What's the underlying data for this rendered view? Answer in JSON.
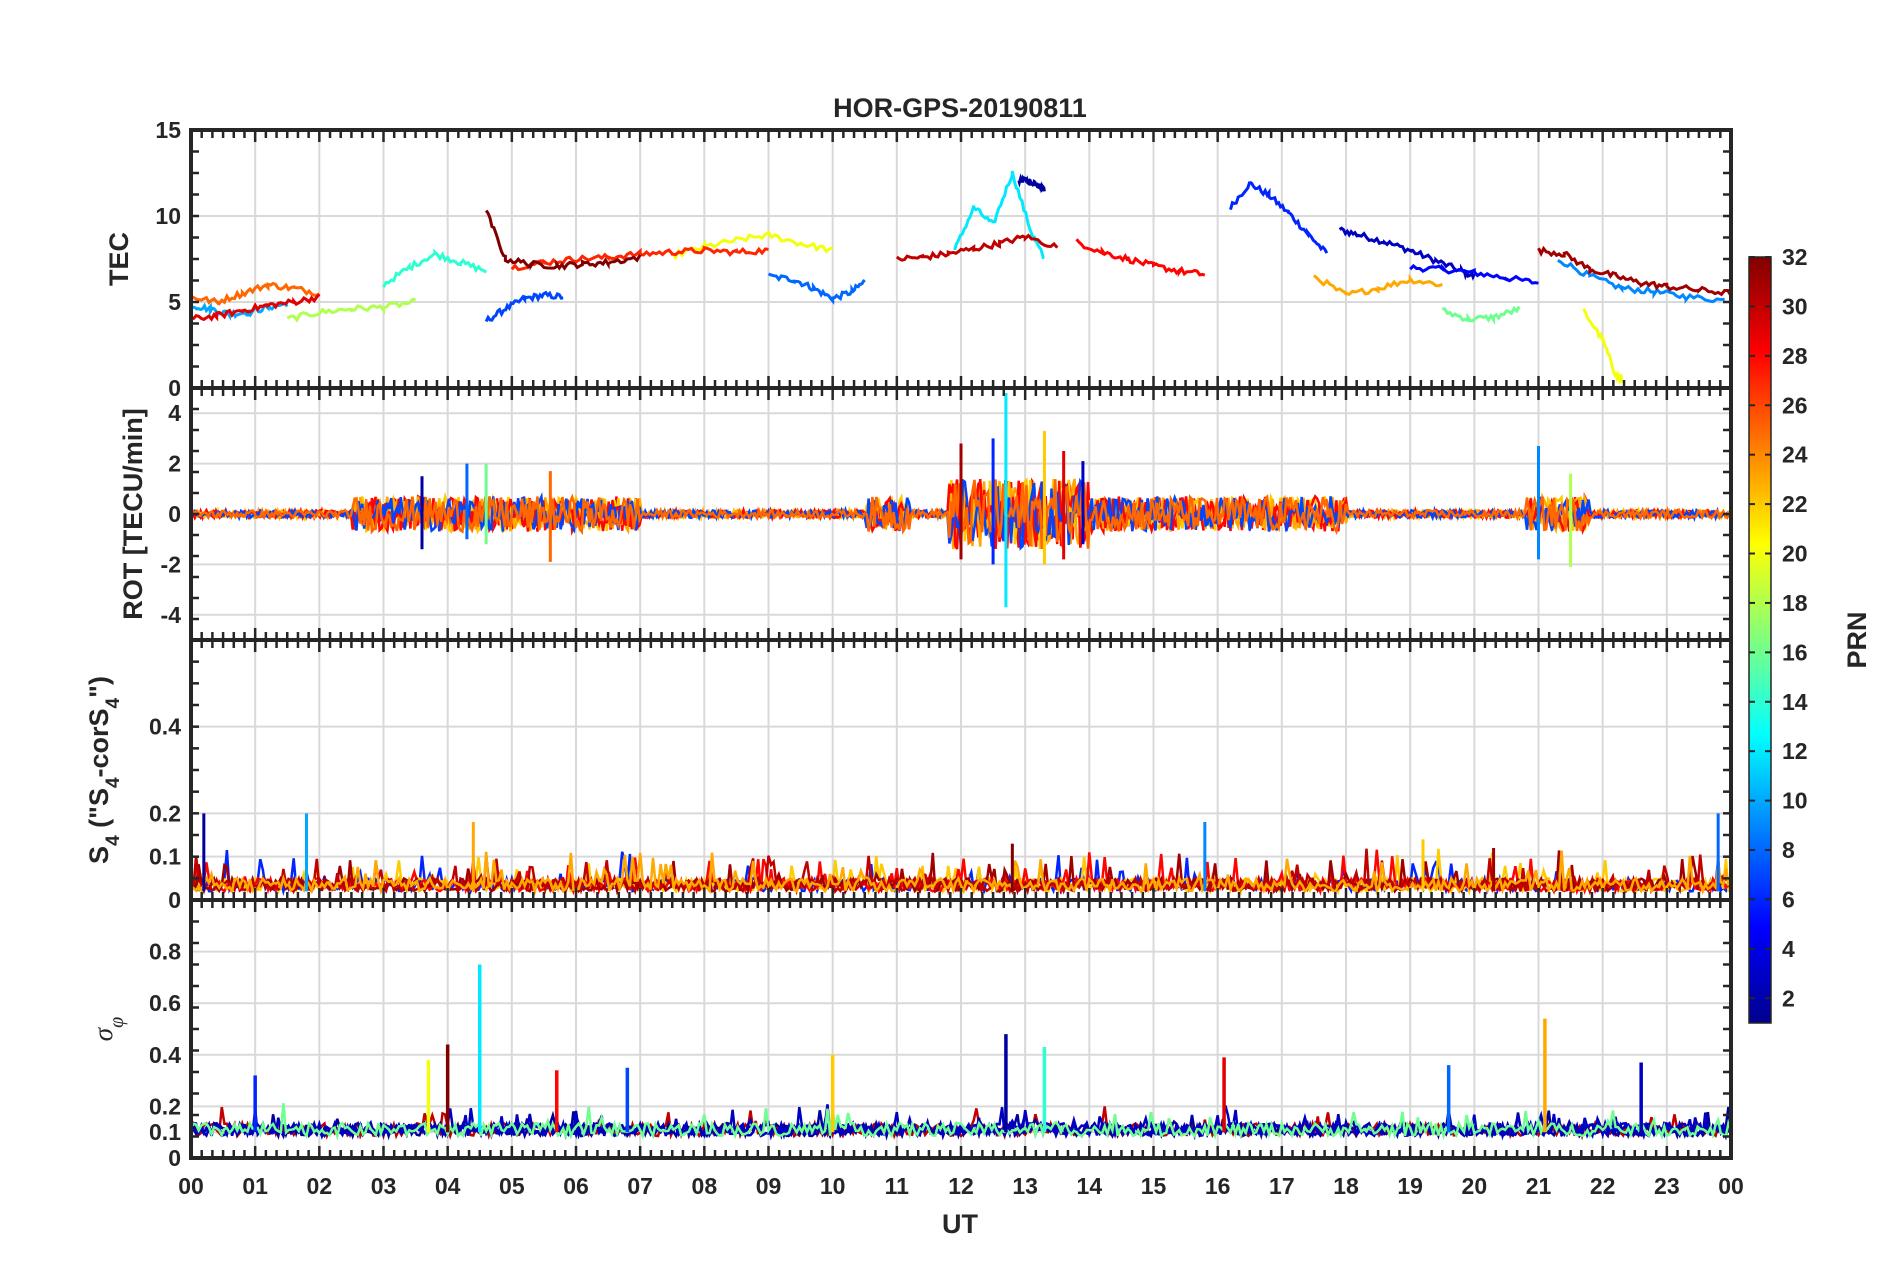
{
  "chart_data": {
    "type": "line",
    "title": "HOR-GPS-20190811",
    "xlabel": "UT",
    "x_ticks": [
      "00",
      "01",
      "02",
      "03",
      "04",
      "05",
      "06",
      "07",
      "08",
      "09",
      "10",
      "11",
      "12",
      "13",
      "14",
      "15",
      "16",
      "17",
      "18",
      "19",
      "20",
      "21",
      "22",
      "23",
      "00"
    ],
    "xlim": [
      0,
      24
    ],
    "grid": true,
    "colorbar": {
      "label": "PRN",
      "range": [
        1,
        32
      ],
      "ticks": [
        "2",
        "4",
        "6",
        "8",
        "10",
        "12",
        "14",
        "16",
        "18",
        "20",
        "22",
        "24",
        "26",
        "28",
        "30",
        "32"
      ]
    },
    "panels": [
      {
        "name": "TEC",
        "ylabel": "TEC",
        "ylim": [
          0,
          15
        ],
        "yticks": [
          "0",
          "5",
          "10",
          "15"
        ],
        "series": [
          {
            "prn": 2,
            "x": [
              12.9,
              13.0,
              13.1,
              13.2,
              13.3
            ],
            "y": [
              12.0,
              12.1,
              11.9,
              11.8,
              11.5
            ]
          },
          {
            "prn": 3,
            "x": [
              17.9,
              18.2,
              18.6,
              19.0,
              19.4,
              19.8,
              20.0
            ],
            "y": [
              9.2,
              8.9,
              8.5,
              8.0,
              7.4,
              6.8,
              6.5
            ]
          },
          {
            "prn": 5,
            "x": [
              19.0,
              19.5,
              20.0,
              20.5,
              21.0
            ],
            "y": [
              7.0,
              6.9,
              6.7,
              6.4,
              6.1
            ]
          },
          {
            "prn": 6,
            "x": [
              16.2,
              16.5,
              16.8,
              17.1,
              17.4,
              17.7
            ],
            "y": [
              10.5,
              11.9,
              11.2,
              10.2,
              9.0,
              7.8
            ]
          },
          {
            "prn": 7,
            "x": [
              4.6,
              4.9,
              5.2,
              5.5,
              5.8
            ],
            "y": [
              3.9,
              4.6,
              5.2,
              5.4,
              5.3
            ]
          },
          {
            "prn": 8,
            "x": [
              9.0,
              9.4,
              9.7,
              10.0,
              10.3,
              10.5
            ],
            "y": [
              6.5,
              6.3,
              5.8,
              5.2,
              5.6,
              6.2
            ]
          },
          {
            "prn": 9,
            "x": [
              21.3,
              21.8,
              22.3,
              22.8,
              23.3,
              23.9
            ],
            "y": [
              7.5,
              6.5,
              5.8,
              5.6,
              5.3,
              5.1
            ]
          },
          {
            "prn": 10,
            "x": [
              0.0,
              0.3,
              0.6,
              0.9,
              1.2,
              1.5
            ],
            "y": [
              4.8,
              4.6,
              4.3,
              4.4,
              4.7,
              4.9
            ]
          },
          {
            "prn": 12,
            "x": [
              11.9,
              12.2,
              12.5,
              12.8,
              13.1,
              13.3
            ],
            "y": [
              8.0,
              10.5,
              9.5,
              12.5,
              9.0,
              7.5
            ]
          },
          {
            "prn": 14,
            "x": [
              3.0,
              3.4,
              3.8,
              4.2,
              4.6
            ],
            "y": [
              6.0,
              7.0,
              7.8,
              7.3,
              6.8
            ]
          },
          {
            "prn": 16,
            "x": [
              19.5,
              19.9,
              20.3,
              20.7
            ],
            "y": [
              4.5,
              4.0,
              4.1,
              4.6
            ]
          },
          {
            "prn": 18,
            "x": [
              1.5,
              2.0,
              2.5,
              3.0,
              3.5
            ],
            "y": [
              4.0,
              4.4,
              4.6,
              4.7,
              5.0
            ]
          },
          {
            "prn": 20,
            "x": [
              7.5,
              8.0,
              8.5,
              9.0,
              9.5,
              10.0
            ],
            "y": [
              7.7,
              8.2,
              8.6,
              8.9,
              8.4,
              8.0
            ]
          },
          {
            "prn": 20,
            "x": [
              21.7,
              22.0,
              22.2,
              22.3
            ],
            "y": [
              4.5,
              2.8,
              0.8,
              0.4
            ]
          },
          {
            "prn": 23,
            "x": [
              17.5,
              18.0,
              18.5,
              19.0,
              19.5
            ],
            "y": [
              6.5,
              5.4,
              5.8,
              6.3,
              6.0
            ]
          },
          {
            "prn": 25,
            "x": [
              0.0,
              0.4,
              0.8,
              1.2,
              1.6,
              2.0
            ],
            "y": [
              5.3,
              5.0,
              5.5,
              6.0,
              5.8,
              5.5
            ]
          },
          {
            "prn": 27,
            "x": [
              5.0,
              5.5,
              6.0,
              6.5,
              7.0,
              7.5,
              8.0,
              8.5,
              9.0
            ],
            "y": [
              7.0,
              7.3,
              7.5,
              7.6,
              7.8,
              7.9,
              8.0,
              7.9,
              8.0
            ]
          },
          {
            "prn": 28,
            "x": [
              13.8,
              14.2,
              14.6,
              15.0,
              15.4,
              15.8
            ],
            "y": [
              8.5,
              7.9,
              7.5,
              7.1,
              6.8,
              6.6
            ]
          },
          {
            "prn": 29,
            "x": [
              0.0,
              0.4,
              0.8,
              1.2,
              1.6,
              2.0
            ],
            "y": [
              4.0,
              4.2,
              4.5,
              4.8,
              5.0,
              5.3
            ]
          },
          {
            "prn": 30,
            "x": [
              11.0,
              11.4,
              11.8,
              12.2,
              12.6,
              13.0,
              13.5
            ],
            "y": [
              7.5,
              7.6,
              7.8,
              8.1,
              8.4,
              8.8,
              8.2
            ]
          },
          {
            "prn": 31,
            "x": [
              21.0,
              21.4,
              21.8,
              22.2,
              22.6,
              23.0,
              23.5,
              24.0
            ],
            "y": [
              8.0,
              7.8,
              6.9,
              6.5,
              6.1,
              5.9,
              5.7,
              5.5
            ]
          },
          {
            "prn": 32,
            "x": [
              4.6,
              4.9,
              5.3,
              5.7,
              6.1,
              6.5,
              7.0
            ],
            "y": [
              10.3,
              7.5,
              7.2,
              7.1,
              7.2,
              7.3,
              7.6
            ]
          }
        ]
      },
      {
        "name": "ROT",
        "ylabel": "ROT [TECU/min]",
        "ylim": [
          -5,
          5
        ],
        "yticks": [
          "-4",
          "-2",
          "0",
          "2",
          "4"
        ],
        "spikes": [
          {
            "x": 3.6,
            "min": -1.4,
            "max": 1.5
          },
          {
            "x": 4.3,
            "min": -1.0,
            "max": 2.0
          },
          {
            "x": 4.6,
            "min": -1.2,
            "max": 2.0
          },
          {
            "x": 5.6,
            "min": -1.9,
            "max": 1.7
          },
          {
            "x": 12.0,
            "min": -1.8,
            "max": 2.8
          },
          {
            "x": 12.5,
            "min": -2.0,
            "max": 3.0
          },
          {
            "x": 12.7,
            "min": -3.7,
            "max": 4.8
          },
          {
            "x": 13.3,
            "min": -2.0,
            "max": 3.3
          },
          {
            "x": 13.6,
            "min": -1.8,
            "max": 2.5
          },
          {
            "x": 13.9,
            "min": -1.2,
            "max": 2.1
          },
          {
            "x": 21.0,
            "min": -1.8,
            "max": 2.7
          },
          {
            "x": 21.5,
            "min": -2.1,
            "max": 1.6
          }
        ]
      },
      {
        "name": "S4",
        "ylabel": "S4 (\"S4-corS4\")",
        "ylim": [
          0,
          0.6
        ],
        "yticks": [
          "0",
          "0.1",
          "0.2",
          "0.4"
        ],
        "spikes": [
          {
            "x": 0.2,
            "value": 0.2
          },
          {
            "x": 1.8,
            "value": 0.2
          },
          {
            "x": 4.4,
            "value": 0.18
          },
          {
            "x": 12.8,
            "value": 0.13
          },
          {
            "x": 15.8,
            "value": 0.18
          },
          {
            "x": 19.2,
            "value": 0.14
          },
          {
            "x": 20.3,
            "value": 0.12
          },
          {
            "x": 23.8,
            "value": 0.2
          }
        ]
      },
      {
        "name": "sigma-phi",
        "ylabel": "σφ",
        "ylim": [
          0,
          1
        ],
        "yticks": [
          "0",
          "0.1",
          "0.2",
          "0.4",
          "0.6",
          "0.8"
        ],
        "spikes": [
          {
            "x": 1.0,
            "value": 0.32
          },
          {
            "x": 3.7,
            "value": 0.38
          },
          {
            "x": 4.0,
            "value": 0.44
          },
          {
            "x": 4.5,
            "value": 0.75
          },
          {
            "x": 5.7,
            "value": 0.34
          },
          {
            "x": 6.8,
            "value": 0.35
          },
          {
            "x": 10.0,
            "value": 0.4
          },
          {
            "x": 12.7,
            "value": 0.48
          },
          {
            "x": 13.3,
            "value": 0.43
          },
          {
            "x": 16.1,
            "value": 0.39
          },
          {
            "x": 19.6,
            "value": 0.36
          },
          {
            "x": 21.1,
            "value": 0.54
          },
          {
            "x": 22.6,
            "value": 0.37
          }
        ]
      }
    ]
  }
}
